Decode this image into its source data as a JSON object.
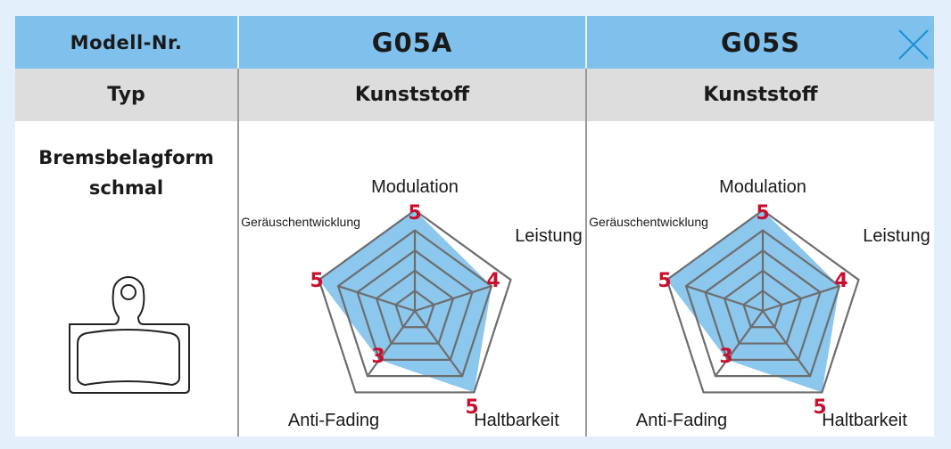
{
  "table": {
    "header": {
      "label": "Modell-Nr.",
      "models": [
        "G05A",
        "G05S"
      ]
    },
    "type_row": {
      "label": "Typ",
      "values": [
        "Kunststoff",
        "Kunststoff"
      ]
    },
    "form_row": {
      "label_line1": "Bremsbelagform",
      "label_line2": "schmal",
      "icon": "brake-pad-icon"
    },
    "close_icon": "close-icon"
  },
  "colors": {
    "header_bg": "#7fc1ec",
    "type_bg": "#dedddd",
    "fill": "#7fc1ec",
    "value_red": "#c8102e",
    "close": "#1e90d8"
  },
  "chart_data": [
    {
      "type": "radar",
      "title": "G05A",
      "axes": [
        "Modulation",
        "Leistung",
        "Haltbarkeit",
        "Anti-Fading",
        "Geräuschentwicklung"
      ],
      "values": [
        5,
        4,
        5,
        3,
        5
      ],
      "scale_max": 5,
      "rings": 5,
      "grid": true
    },
    {
      "type": "radar",
      "title": "G05S",
      "axes": [
        "Modulation",
        "Leistung",
        "Haltbarkeit",
        "Anti-Fading",
        "Geräuschentwicklung"
      ],
      "values": [
        5,
        4,
        5,
        3,
        5
      ],
      "scale_max": 5,
      "rings": 5,
      "grid": true
    }
  ]
}
